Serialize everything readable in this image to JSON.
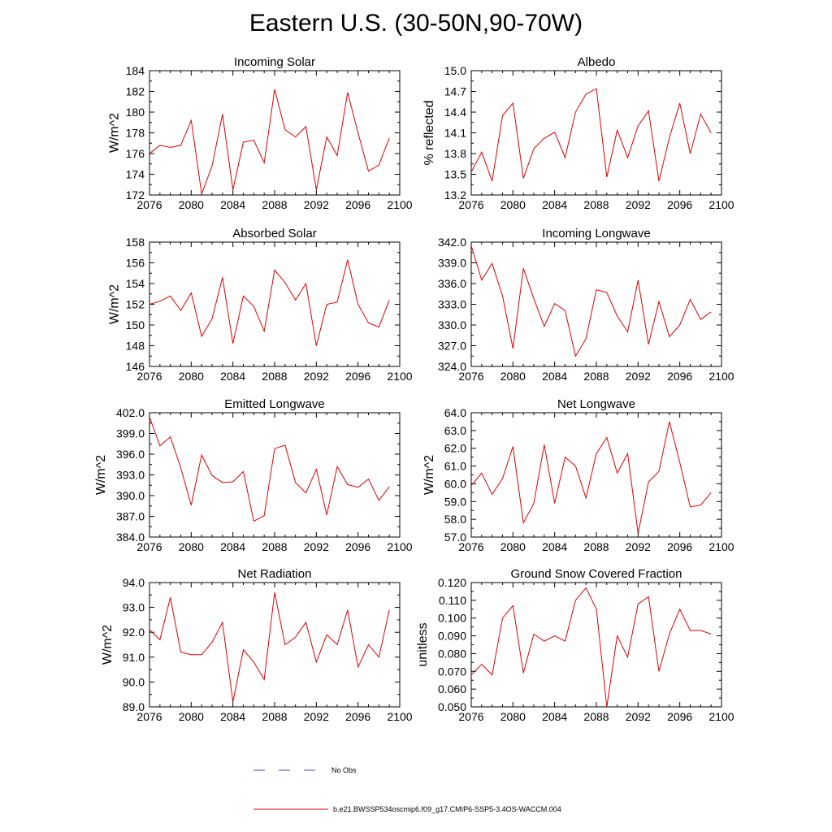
{
  "figure": {
    "title": "Eastern U.S. (30-50N,90-70W)"
  },
  "legend": {
    "obs_label": "No Obs",
    "model_label": "b.e21.BWSSP534oscmip6.f09_g17.CMIP6-SSP5-3.4OS-WACCM.004",
    "obs_color": "#4040c0",
    "model_color": "#e00000"
  },
  "chart_data": [
    {
      "type": "line",
      "title": "Incoming Solar",
      "ylabel": "W/m^2",
      "xlim": [
        2076,
        2100
      ],
      "ylim": [
        172,
        184
      ],
      "xticks": [
        2076,
        2080,
        2084,
        2088,
        2092,
        2096,
        2100
      ],
      "yticks": [
        172,
        174,
        176,
        178,
        180,
        182,
        184
      ],
      "ytick_decimals": 0,
      "x": [
        2076,
        2077,
        2078,
        2079,
        2080,
        2081,
        2082,
        2083,
        2084,
        2085,
        2086,
        2087,
        2088,
        2089,
        2090,
        2091,
        2092,
        2093,
        2094,
        2095,
        2096,
        2097,
        2098,
        2099
      ],
      "series": [
        {
          "values": [
            176.0,
            176.8,
            176.6,
            176.8,
            179.2,
            172.1,
            174.8,
            179.8,
            172.5,
            177.1,
            177.3,
            175.1,
            182.2,
            178.3,
            177.6,
            178.6,
            172.5,
            177.6,
            175.8,
            181.9,
            178.0,
            174.3,
            174.9,
            177.5
          ]
        }
      ]
    },
    {
      "type": "line",
      "title": "Albedo",
      "ylabel": "% reflected",
      "xlim": [
        2076,
        2100
      ],
      "ylim": [
        13.2,
        15.0
      ],
      "xticks": [
        2076,
        2080,
        2084,
        2088,
        2092,
        2096,
        2100
      ],
      "yticks": [
        13.2,
        13.5,
        13.8,
        14.1,
        14.4,
        14.7,
        15.0
      ],
      "ytick_decimals": 1,
      "x": [
        2076,
        2077,
        2078,
        2079,
        2080,
        2081,
        2082,
        2083,
        2084,
        2085,
        2086,
        2087,
        2088,
        2089,
        2090,
        2091,
        2092,
        2093,
        2094,
        2095,
        2096,
        2097,
        2098,
        2099
      ],
      "series": [
        {
          "values": [
            13.53,
            13.82,
            13.4,
            14.35,
            14.53,
            13.44,
            13.87,
            14.02,
            14.11,
            13.74,
            14.4,
            14.66,
            14.74,
            13.46,
            14.14,
            13.74,
            14.2,
            14.42,
            13.4,
            14.03,
            14.53,
            13.8,
            14.37,
            14.1
          ]
        }
      ]
    },
    {
      "type": "line",
      "title": "Absorbed Solar",
      "ylabel": "W/m^2",
      "xlim": [
        2076,
        2100
      ],
      "ylim": [
        146,
        158
      ],
      "xticks": [
        2076,
        2080,
        2084,
        2088,
        2092,
        2096,
        2100
      ],
      "yticks": [
        146,
        148,
        150,
        152,
        154,
        156,
        158
      ],
      "ytick_decimals": 0,
      "x": [
        2076,
        2077,
        2078,
        2079,
        2080,
        2081,
        2082,
        2083,
        2084,
        2085,
        2086,
        2087,
        2088,
        2089,
        2090,
        2091,
        2092,
        2093,
        2094,
        2095,
        2096,
        2097,
        2098,
        2099
      ],
      "series": [
        {
          "values": [
            152.0,
            152.3,
            152.8,
            151.4,
            153.1,
            148.9,
            150.6,
            154.6,
            148.2,
            152.8,
            151.8,
            149.4,
            155.3,
            154.1,
            152.4,
            154.0,
            148.0,
            152.0,
            152.2,
            156.3,
            152.0,
            150.2,
            149.8,
            152.4
          ]
        }
      ]
    },
    {
      "type": "line",
      "title": "Incoming Longwave",
      "ylabel": "",
      "xlim": [
        2076,
        2100
      ],
      "ylim": [
        324.0,
        342.0
      ],
      "xticks": [
        2076,
        2080,
        2084,
        2088,
        2092,
        2096,
        2100
      ],
      "yticks": [
        324.0,
        327.0,
        330.0,
        333.0,
        336.0,
        339.0,
        342.0
      ],
      "ytick_decimals": 1,
      "x": [
        2076,
        2077,
        2078,
        2079,
        2080,
        2081,
        2082,
        2083,
        2084,
        2085,
        2086,
        2087,
        2088,
        2089,
        2090,
        2091,
        2092,
        2093,
        2094,
        2095,
        2096,
        2097,
        2098,
        2099
      ],
      "series": [
        {
          "values": [
            341.5,
            336.5,
            338.9,
            334.2,
            326.6,
            338.2,
            333.8,
            329.8,
            333.1,
            332.1,
            325.5,
            328.0,
            335.1,
            334.7,
            331.3,
            329.0,
            336.5,
            327.2,
            333.4,
            328.3,
            330.0,
            333.7,
            330.8,
            331.9
          ]
        }
      ]
    },
    {
      "type": "line",
      "title": "Emitted Longwave",
      "ylabel": "W/m^2",
      "xlim": [
        2076,
        2100
      ],
      "ylim": [
        384.0,
        402.0
      ],
      "xticks": [
        2076,
        2080,
        2084,
        2088,
        2092,
        2096,
        2100
      ],
      "yticks": [
        384.0,
        387.0,
        390.0,
        393.0,
        396.0,
        399.0,
        402.0
      ],
      "ytick_decimals": 1,
      "x": [
        2076,
        2077,
        2078,
        2079,
        2080,
        2081,
        2082,
        2083,
        2084,
        2085,
        2086,
        2087,
        2088,
        2089,
        2090,
        2091,
        2092,
        2093,
        2094,
        2095,
        2096,
        2097,
        2098,
        2099
      ],
      "series": [
        {
          "values": [
            401.4,
            397.2,
            398.5,
            394.0,
            388.6,
            395.9,
            392.9,
            391.9,
            392.0,
            393.5,
            386.3,
            387.1,
            396.8,
            397.3,
            391.9,
            390.4,
            393.8,
            387.2,
            394.2,
            391.6,
            391.2,
            392.4,
            389.3,
            391.3
          ]
        }
      ]
    },
    {
      "type": "line",
      "title": "Net Longwave",
      "ylabel": "W/m^2",
      "xlim": [
        2076,
        2100
      ],
      "ylim": [
        57.0,
        64.0
      ],
      "xticks": [
        2076,
        2080,
        2084,
        2088,
        2092,
        2096,
        2100
      ],
      "yticks": [
        57.0,
        58.0,
        59.0,
        60.0,
        61.0,
        62.0,
        63.0,
        64.0
      ],
      "ytick_decimals": 1,
      "x": [
        2076,
        2077,
        2078,
        2079,
        2080,
        2081,
        2082,
        2083,
        2084,
        2085,
        2086,
        2087,
        2088,
        2089,
        2090,
        2091,
        2092,
        2093,
        2094,
        2095,
        2096,
        2097,
        2098,
        2099
      ],
      "series": [
        {
          "values": [
            59.9,
            60.6,
            59.4,
            60.3,
            62.1,
            57.8,
            58.9,
            62.2,
            58.9,
            61.5,
            61.0,
            59.2,
            61.7,
            62.6,
            60.6,
            61.7,
            57.2,
            60.1,
            60.7,
            63.5,
            61.2,
            58.7,
            58.8,
            59.5
          ]
        }
      ]
    },
    {
      "type": "line",
      "title": "Net Radiation",
      "ylabel": "W/m^2",
      "xlim": [
        2076,
        2100
      ],
      "ylim": [
        89.0,
        94.0
      ],
      "xticks": [
        2076,
        2080,
        2084,
        2088,
        2092,
        2096,
        2100
      ],
      "yticks": [
        89.0,
        90.0,
        91.0,
        92.0,
        93.0,
        94.0
      ],
      "ytick_decimals": 1,
      "x": [
        2076,
        2077,
        2078,
        2079,
        2080,
        2081,
        2082,
        2083,
        2084,
        2085,
        2086,
        2087,
        2088,
        2089,
        2090,
        2091,
        2092,
        2093,
        2094,
        2095,
        2096,
        2097,
        2098,
        2099
      ],
      "series": [
        {
          "values": [
            92.1,
            91.7,
            93.4,
            91.2,
            91.1,
            91.1,
            91.6,
            92.4,
            89.2,
            91.3,
            90.8,
            90.1,
            93.6,
            91.5,
            91.8,
            92.4,
            90.8,
            91.9,
            91.5,
            92.9,
            90.6,
            91.5,
            91.0,
            92.9
          ]
        }
      ]
    },
    {
      "type": "line",
      "title": "Ground Snow Covered Fraction",
      "ylabel": "unitless",
      "xlim": [
        2076,
        2100
      ],
      "ylim": [
        0.05,
        0.12
      ],
      "xticks": [
        2076,
        2080,
        2084,
        2088,
        2092,
        2096,
        2100
      ],
      "yticks": [
        0.05,
        0.06,
        0.07,
        0.08,
        0.09,
        0.1,
        0.11,
        0.12
      ],
      "ytick_decimals": 3,
      "x": [
        2076,
        2077,
        2078,
        2079,
        2080,
        2081,
        2082,
        2083,
        2084,
        2085,
        2086,
        2087,
        2088,
        2089,
        2090,
        2091,
        2092,
        2093,
        2094,
        2095,
        2096,
        2097,
        2098,
        2099
      ],
      "series": [
        {
          "values": [
            0.068,
            0.074,
            0.068,
            0.1,
            0.107,
            0.069,
            0.091,
            0.087,
            0.09,
            0.087,
            0.11,
            0.117,
            0.105,
            0.05,
            0.09,
            0.078,
            0.108,
            0.112,
            0.07,
            0.091,
            0.105,
            0.093,
            0.093,
            0.091
          ]
        }
      ]
    }
  ]
}
